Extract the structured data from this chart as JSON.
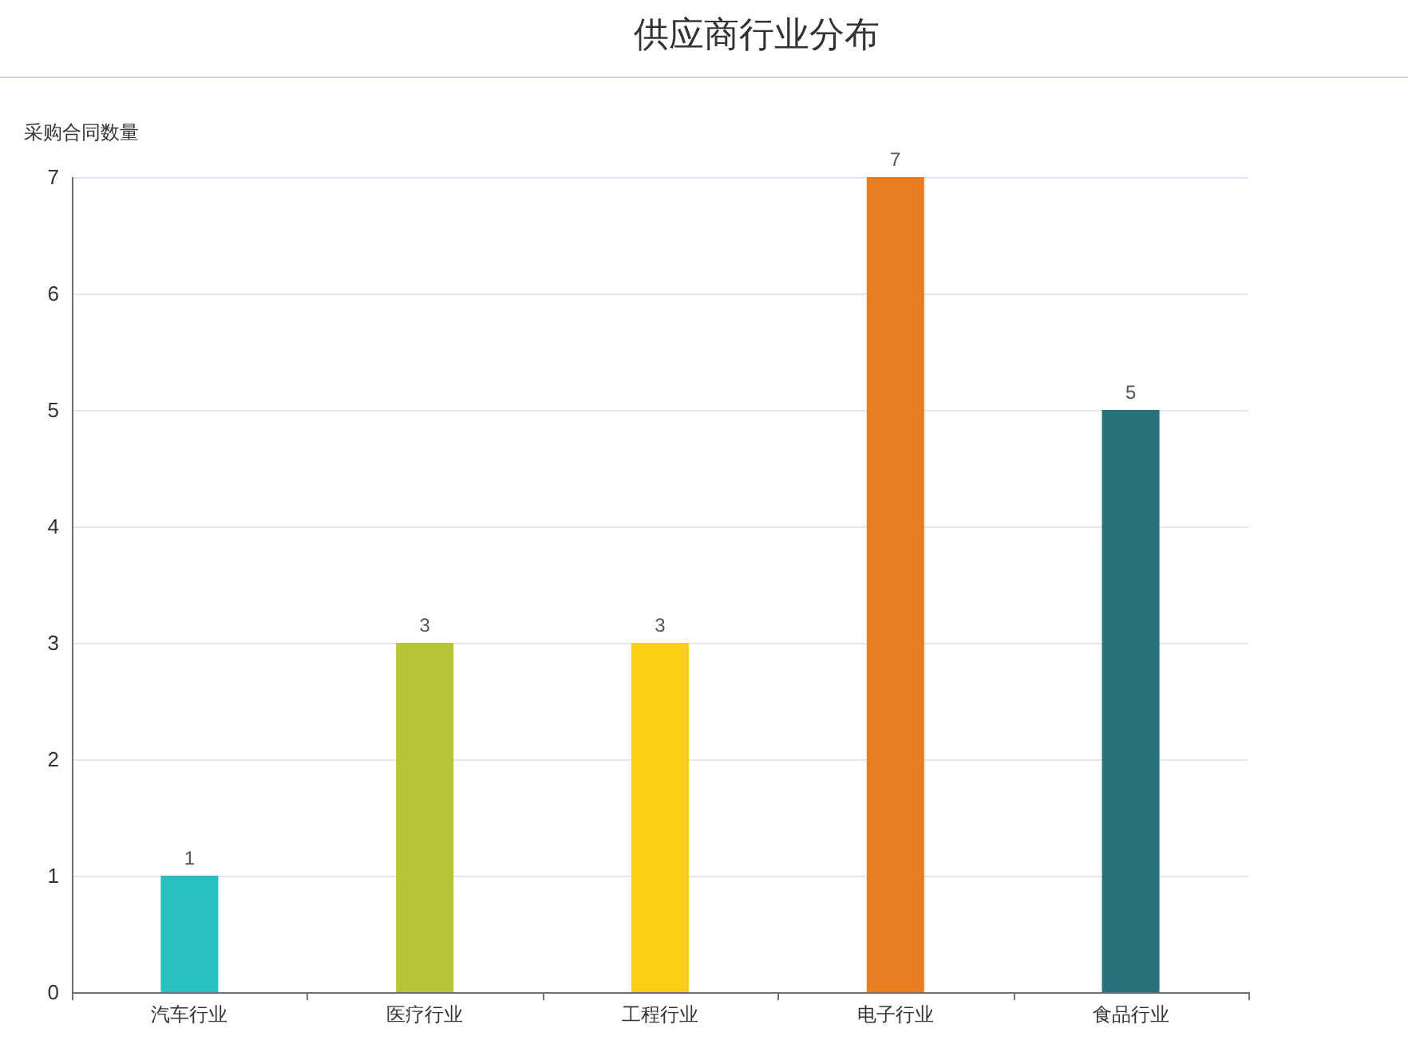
{
  "chart_data": {
    "type": "bar",
    "title": "供应商行业分布",
    "ylabel": "采购合同数量",
    "categories": [
      "汽车行业",
      "医疗行业",
      "工程行业",
      "电子行业",
      "食品行业"
    ],
    "values": [
      1,
      3,
      3,
      7,
      5
    ],
    "colors": [
      "#26c0c0",
      "#b5c334",
      "#fcce10",
      "#e87c25",
      "#27727b"
    ],
    "ylim": [
      0,
      7
    ],
    "yticks": [
      0,
      1,
      2,
      3,
      4,
      5,
      6,
      7
    ],
    "grid": "y",
    "data_labels": true
  }
}
